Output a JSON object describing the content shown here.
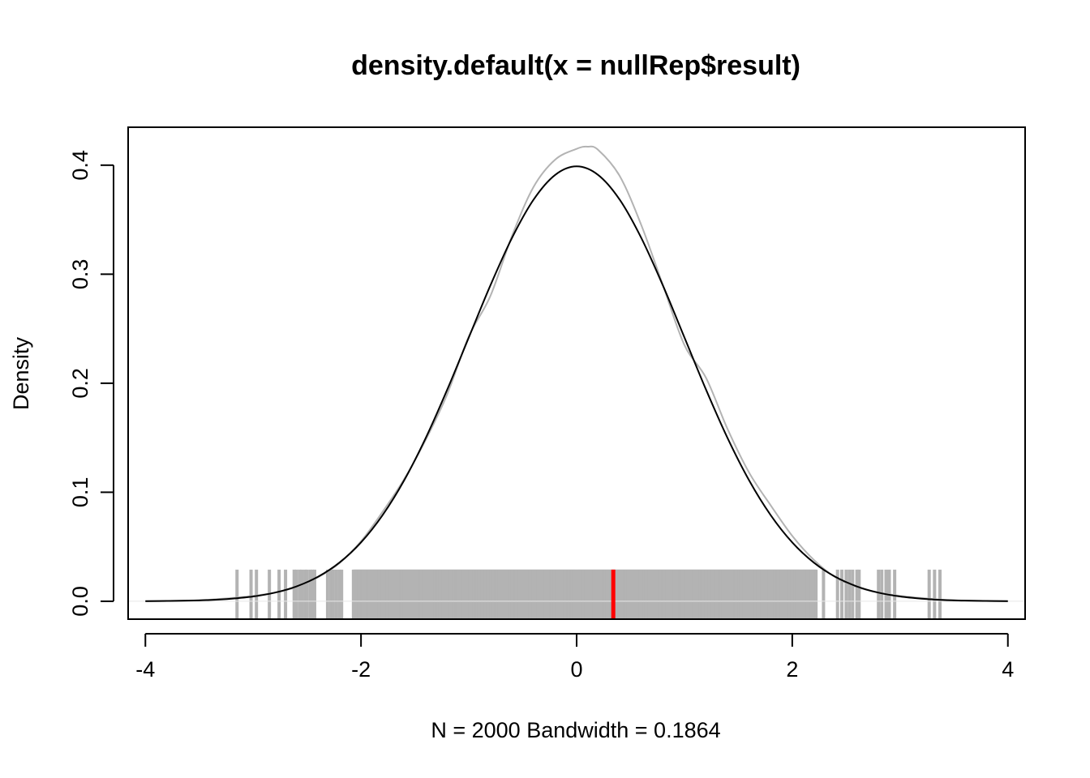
{
  "chart_data": {
    "type": "line",
    "title": "density.default(x = nullRep$result)",
    "xlabel": "N = 2000   Bandwidth = 0.1864",
    "ylabel": "Density",
    "xlim": [
      -4.16,
      4.16
    ],
    "ylim": [
      -0.0164,
      0.4348
    ],
    "x_ticks": [
      -4,
      -2,
      0,
      2,
      4
    ],
    "x_tick_labels": [
      "-4",
      "-2",
      "0",
      "2",
      "4"
    ],
    "y_ticks": [
      0.0,
      0.1,
      0.2,
      0.3,
      0.4
    ],
    "y_tick_labels": [
      "0.0",
      "0.1",
      "0.2",
      "0.3",
      "0.4"
    ],
    "grid": false,
    "series": [
      {
        "color": "#b3b3b3",
        "x": [
          -4.0,
          -3.5,
          -3.2,
          -3.0,
          -2.8,
          -2.6,
          -2.4,
          -2.2,
          -2.0,
          -1.8,
          -1.6,
          -1.4,
          -1.2,
          -1.0,
          -0.8,
          -0.6,
          -0.4,
          -0.2,
          0.0,
          0.1,
          0.2,
          0.4,
          0.6,
          0.8,
          1.0,
          1.2,
          1.4,
          1.6,
          1.8,
          2.0,
          2.2,
          2.4,
          2.6,
          2.8,
          3.0,
          3.2,
          3.5,
          4.0
        ],
        "y": [
          0.0,
          0.001,
          0.003,
          0.005,
          0.008,
          0.013,
          0.022,
          0.035,
          0.055,
          0.082,
          0.112,
          0.148,
          0.19,
          0.243,
          0.28,
          0.335,
          0.38,
          0.405,
          0.415,
          0.417,
          0.414,
          0.39,
          0.345,
          0.29,
          0.235,
          0.205,
          0.158,
          0.118,
          0.088,
          0.06,
          0.038,
          0.022,
          0.013,
          0.008,
          0.005,
          0.003,
          0.001,
          0.0
        ]
      },
      {
        "color": "#000000",
        "x": [
          -4.0,
          -3.8,
          -3.6,
          -3.4,
          -3.2,
          -3.0,
          -2.8,
          -2.6,
          -2.4,
          -2.2,
          -2.0,
          -1.8,
          -1.6,
          -1.4,
          -1.2,
          -1.0,
          -0.8,
          -0.6,
          -0.4,
          -0.2,
          0.0,
          0.2,
          0.4,
          0.6,
          0.8,
          1.0,
          1.2,
          1.4,
          1.6,
          1.8,
          2.0,
          2.2,
          2.4,
          2.6,
          2.8,
          3.0,
          3.2,
          3.4,
          3.6,
          3.8,
          4.0
        ],
        "y": [
          0.0001,
          0.0003,
          0.0006,
          0.0012,
          0.0024,
          0.0044,
          0.0079,
          0.0136,
          0.0224,
          0.0355,
          0.054,
          0.079,
          0.1109,
          0.1497,
          0.1942,
          0.242,
          0.2897,
          0.3332,
          0.3683,
          0.391,
          0.3989,
          0.391,
          0.3683,
          0.3332,
          0.2897,
          0.242,
          0.1942,
          0.1497,
          0.1109,
          0.079,
          0.054,
          0.0355,
          0.0224,
          0.0136,
          0.0079,
          0.0044,
          0.0024,
          0.0012,
          0.0006,
          0.0003,
          0.0001
        ]
      }
    ],
    "rug": {
      "color": "#b3b3b3",
      "height": 0.029,
      "dense_range": [
        -2.07,
        2.22
      ],
      "dense_step": 0.01,
      "ticks": [
        -3.15,
        -3.02,
        -2.97,
        -2.85,
        -2.76,
        -2.7,
        -2.62,
        -2.6,
        -2.57,
        -2.55,
        -2.52,
        -2.5,
        -2.47,
        -2.45,
        -2.43,
        -2.31,
        -2.28,
        -2.26,
        -2.23,
        -2.2,
        -2.18,
        2.29,
        2.42,
        2.46,
        2.5,
        2.53,
        2.56,
        2.6,
        2.62,
        2.8,
        2.83,
        2.87,
        2.9,
        2.95,
        3.27,
        3.32,
        3.37
      ]
    },
    "observed_line": {
      "x": 0.34,
      "color": "#ff0000"
    }
  }
}
